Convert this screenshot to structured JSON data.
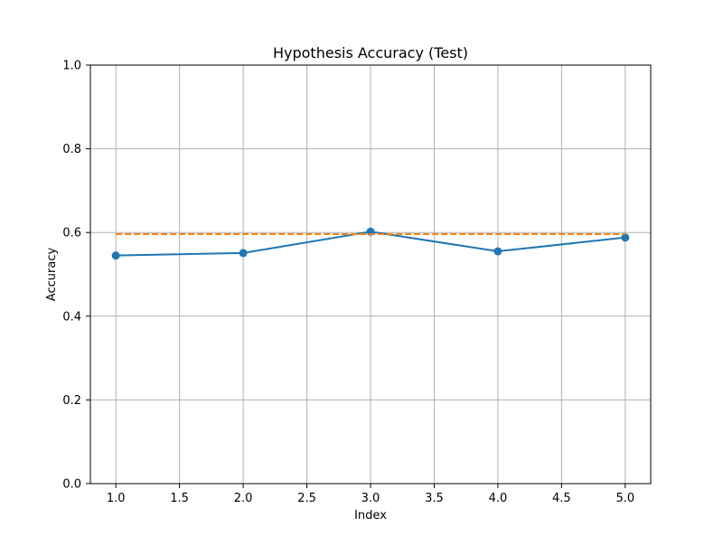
{
  "chart_data": {
    "type": "line",
    "title": "Hypothesis Accuracy (Test)",
    "xlabel": "Index",
    "ylabel": "Accuracy",
    "xlim": [
      0.8,
      5.2
    ],
    "ylim": [
      0.0,
      1.0
    ],
    "xticks": [
      1.0,
      1.5,
      2.0,
      2.5,
      3.0,
      3.5,
      4.0,
      4.5,
      5.0
    ],
    "xtick_labels": [
      "1.0",
      "1.5",
      "2.0",
      "2.5",
      "3.0",
      "3.5",
      "4.0",
      "4.5",
      "5.0"
    ],
    "yticks": [
      0.0,
      0.2,
      0.4,
      0.6,
      0.8,
      1.0
    ],
    "ytick_labels": [
      "0.0",
      "0.2",
      "0.4",
      "0.6",
      "0.8",
      "1.0"
    ],
    "grid": true,
    "series": [
      {
        "x": [
          1,
          2,
          3,
          4,
          5
        ],
        "y": [
          0.545,
          0.551,
          0.602,
          0.555,
          0.588
        ],
        "color": "#1f77b4",
        "line_style": "solid",
        "marker": "circle"
      },
      {
        "x": [
          1,
          5
        ],
        "y": [
          0.596,
          0.596
        ],
        "color": "#ff7f0e",
        "line_style": "dashed",
        "marker": "none"
      }
    ]
  }
}
